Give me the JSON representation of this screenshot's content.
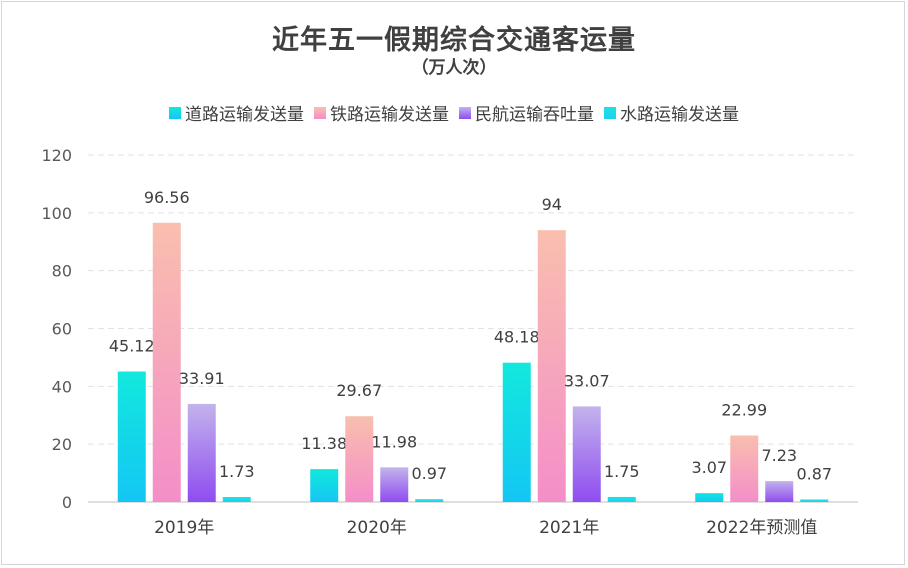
{
  "chart_data": {
    "type": "bar",
    "title": "近年五一假期综合交通客运量",
    "subtitle": "（万人次）",
    "categories": [
      "2019年",
      "2020年",
      "2021年",
      "2022年预测值"
    ],
    "series": [
      {
        "name": "道路运输发送量",
        "values": [
          45.12,
          11.38,
          48.18,
          3.07
        ],
        "color_top": "#12e8dd",
        "color_bottom": "#14c6f4"
      },
      {
        "name": "铁路运输发送量",
        "values": [
          96.56,
          29.67,
          94,
          22.99
        ],
        "color_top": "#f9bfae",
        "color_bottom": "#f48ec9"
      },
      {
        "name": "民航运输吞吐量",
        "values": [
          33.91,
          11.98,
          33.07,
          7.23
        ],
        "color_top": "#c3b3ec",
        "color_bottom": "#8f4cf0"
      },
      {
        "name": "水路运输发送量",
        "values": [
          1.73,
          0.97,
          1.75,
          0.87
        ],
        "color_top": "#19e3e3",
        "color_bottom": "#1fd0ee"
      }
    ],
    "data_labels": [
      [
        "45.12",
        "11.38",
        "48.18",
        "3.07"
      ],
      [
        "96.56",
        "29.67",
        "94",
        "22.99"
      ],
      [
        "33.91",
        "11.98",
        "33.07",
        "7.23"
      ],
      [
        "1.73",
        "0.97",
        "1.75",
        "0.87"
      ]
    ],
    "ylim": [
      0,
      120
    ],
    "yticks": [
      "0",
      "20",
      "40",
      "60",
      "80",
      "100",
      "120"
    ],
    "xlabel": "",
    "ylabel": "",
    "grid": true,
    "legend_position": "top"
  }
}
